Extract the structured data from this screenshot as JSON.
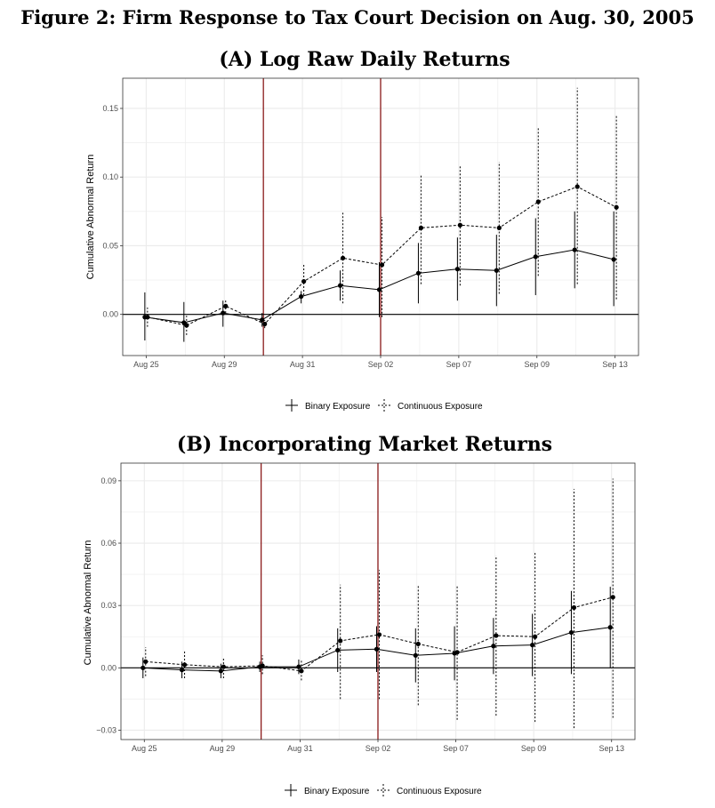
{
  "figure_title": "Figure 2: Firm Response to Tax Court Decision on Aug. 30, 2005",
  "colors": {
    "event_line": "#8b1a1a",
    "grid": "#ebebeb",
    "panel_border": "#333333"
  },
  "chart_data": [
    {
      "type": "line",
      "title": "(A) Log Raw Daily Returns",
      "ylabel": "Cumulative Abnormal Return",
      "xlabel": "",
      "x_index": [
        0,
        1,
        2,
        3,
        4,
        5,
        6,
        7,
        8,
        9,
        10,
        11,
        12
      ],
      "x_tick_labels": [
        {
          "at": 0,
          "label": "Aug 25"
        },
        {
          "at": 2,
          "label": "Aug 29"
        },
        {
          "at": 4,
          "label": "Aug 31"
        },
        {
          "at": 6,
          "label": "Sep 02"
        },
        {
          "at": 8,
          "label": "Sep 07"
        },
        {
          "at": 10,
          "label": "Sep 09"
        },
        {
          "at": 12,
          "label": "Sep 13"
        }
      ],
      "xlim": [
        -0.6,
        12.6
      ],
      "ylim": [
        -0.03,
        0.172
      ],
      "y_ticks": [
        0.0,
        0.05,
        0.1,
        0.15
      ],
      "y_tick_labels": [
        "0.00",
        "0.05",
        "0.10",
        "0.15"
      ],
      "event_lines_at": [
        3,
        6
      ],
      "hline_at": 0,
      "grid": true,
      "legend_position": "bottom",
      "series": [
        {
          "name": "Binary Exposure",
          "style": "solid",
          "values": [
            -0.002,
            -0.006,
            0.001,
            -0.004,
            0.013,
            0.021,
            0.018,
            0.03,
            0.033,
            0.032,
            0.042,
            0.047,
            0.04
          ],
          "ci_low": [
            -0.019,
            -0.02,
            -0.009,
            -0.009,
            0.008,
            0.01,
            -0.002,
            0.008,
            0.01,
            0.006,
            0.014,
            0.019,
            0.006
          ],
          "ci_high": [
            0.016,
            0.009,
            0.01,
            0.001,
            0.017,
            0.032,
            0.038,
            0.052,
            0.056,
            0.058,
            0.07,
            0.075,
            0.075
          ]
        },
        {
          "name": "Continuous Exposure",
          "style": "dashed",
          "values": [
            -0.002,
            -0.008,
            0.006,
            -0.007,
            0.024,
            0.041,
            0.036,
            0.063,
            0.065,
            0.063,
            0.082,
            0.093,
            0.078
          ],
          "ci_low": [
            -0.009,
            -0.015,
            0.001,
            -0.01,
            0.014,
            0.008,
            -0.002,
            0.022,
            0.021,
            0.015,
            0.028,
            0.022,
            0.011
          ],
          "ci_high": [
            0.005,
            -0.001,
            0.011,
            -0.004,
            0.036,
            0.074,
            0.071,
            0.102,
            0.108,
            0.111,
            0.136,
            0.165,
            0.145
          ]
        }
      ]
    },
    {
      "type": "line",
      "title": "(B) Incorporating Market Returns",
      "ylabel": "Cumulative Abnormal Return",
      "xlabel": "",
      "x_index": [
        0,
        1,
        2,
        3,
        4,
        5,
        6,
        7,
        8,
        9,
        10,
        11,
        12
      ],
      "x_tick_labels": [
        {
          "at": 0,
          "label": "Aug 25"
        },
        {
          "at": 2,
          "label": "Aug 29"
        },
        {
          "at": 4,
          "label": "Aug 31"
        },
        {
          "at": 6,
          "label": "Sep 02"
        },
        {
          "at": 8,
          "label": "Sep 07"
        },
        {
          "at": 10,
          "label": "Sep 09"
        },
        {
          "at": 12,
          "label": "Sep 13"
        }
      ],
      "xlim": [
        -0.6,
        12.6
      ],
      "ylim": [
        -0.0345,
        0.0985
      ],
      "y_ticks": [
        -0.03,
        0.0,
        0.03,
        0.06,
        0.09
      ],
      "y_tick_labels": [
        "−0.03",
        "0.00",
        "0.03",
        "0.06",
        "0.09"
      ],
      "event_lines_at": [
        3,
        6
      ],
      "hline_at": 0,
      "grid": true,
      "legend_position": "bottom",
      "series": [
        {
          "name": "Binary Exposure",
          "style": "solid",
          "values": [
            0.0,
            -0.001,
            -0.0015,
            0.0005,
            0.0005,
            0.0085,
            0.009,
            0.006,
            0.007,
            0.0105,
            0.011,
            0.017,
            0.0195
          ],
          "ci_low": [
            -0.005,
            -0.005,
            -0.005,
            -0.002,
            -0.003,
            -0.002,
            -0.002,
            -0.007,
            -0.006,
            -0.003,
            -0.004,
            -0.003,
            0.0
          ],
          "ci_high": [
            0.005,
            0.003,
            0.002,
            0.003,
            0.004,
            0.019,
            0.02,
            0.019,
            0.02,
            0.024,
            0.026,
            0.037,
            0.039
          ]
        },
        {
          "name": "Continuous Exposure",
          "style": "dashed",
          "values": [
            0.003,
            0.0015,
            0.0005,
            0.001,
            -0.0015,
            0.013,
            0.016,
            0.0115,
            0.0075,
            0.0155,
            0.015,
            0.029,
            0.034
          ],
          "ci_low": [
            -0.004,
            -0.005,
            -0.005,
            -0.003,
            -0.006,
            -0.015,
            -0.015,
            -0.018,
            -0.025,
            -0.023,
            -0.026,
            -0.029,
            -0.024
          ],
          "ci_high": [
            0.01,
            0.008,
            0.005,
            0.006,
            0.004,
            0.04,
            0.047,
            0.04,
            0.04,
            0.054,
            0.056,
            0.086,
            0.091
          ]
        }
      ]
    }
  ]
}
